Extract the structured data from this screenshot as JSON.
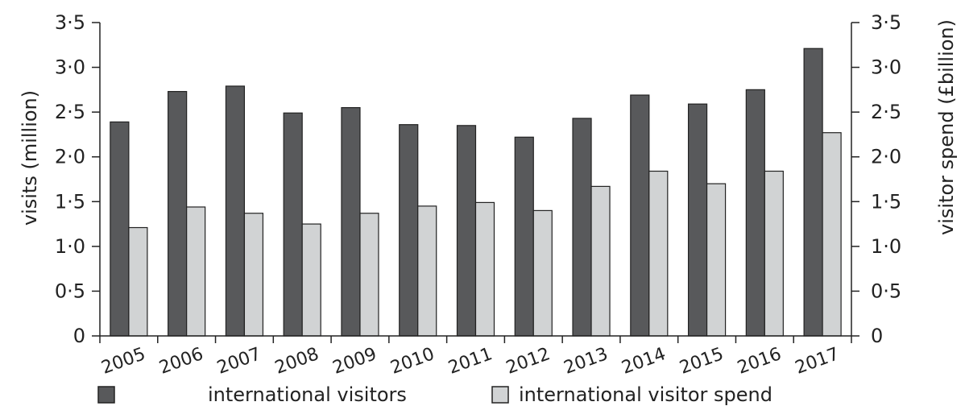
{
  "chart_data": {
    "type": "bar",
    "categories": [
      "2005",
      "2006",
      "2007",
      "2008",
      "2009",
      "2010",
      "2011",
      "2012",
      "2013",
      "2014",
      "2015",
      "2016",
      "2017"
    ],
    "series": [
      {
        "name": "international visitors",
        "axis": "left",
        "color": "#58595b",
        "values": [
          2.39,
          2.73,
          2.79,
          2.49,
          2.55,
          2.36,
          2.35,
          2.22,
          2.43,
          2.69,
          2.59,
          2.75,
          3.21
        ]
      },
      {
        "name": "international visitor spend",
        "axis": "right",
        "color": "#d1d3d4",
        "values": [
          1.21,
          1.44,
          1.37,
          1.25,
          1.37,
          1.45,
          1.49,
          1.4,
          1.67,
          1.84,
          1.7,
          1.84,
          2.27
        ]
      }
    ],
    "ylabel": "visits (million)",
    "y2label": "visitor spend (£billion)",
    "ylim": [
      0,
      3.5
    ],
    "y2lim": [
      0,
      3.5
    ],
    "yticks": [
      "0",
      "0·5",
      "1·0",
      "1·5",
      "2·0",
      "2·5",
      "3·0",
      "3·5"
    ],
    "y2ticks": [
      "0",
      "0·5",
      "1·0",
      "1·5",
      "2·0",
      "2·5",
      "3·0",
      "3·5"
    ],
    "grid": false,
    "legend_position": "bottom"
  }
}
